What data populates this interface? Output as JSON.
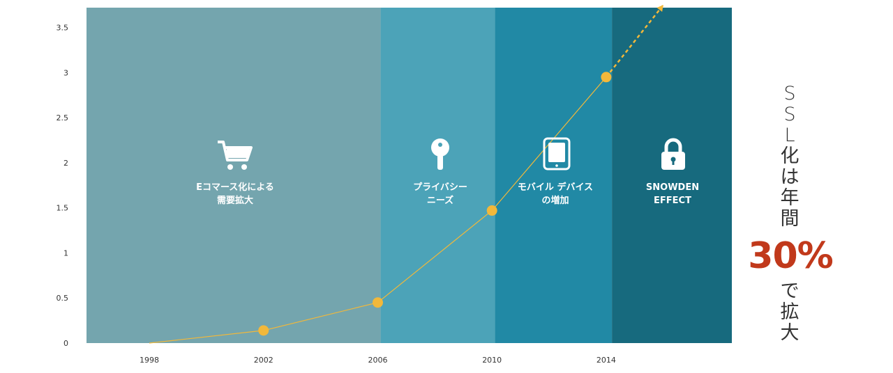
{
  "chart_data": {
    "type": "line",
    "x": [
      1998,
      2002,
      2006,
      2010,
      2014
    ],
    "y": [
      0.0,
      0.14,
      0.45,
      1.47,
      2.95
    ],
    "projection": {
      "from": [
        2014,
        2.95
      ],
      "to": [
        2016,
        3.75
      ]
    },
    "xticks": [
      "1998",
      "2002",
      "2006",
      "2010",
      "2014"
    ],
    "yticks": [
      "0",
      "0.5",
      "1",
      "1.5",
      "2",
      "2.5",
      "3",
      "3.5"
    ],
    "xlim": [
      1995.8,
      2018.4
    ],
    "ylim": [
      0,
      3.72
    ],
    "grid": false,
    "bands": [
      {
        "from": 1995.8,
        "to": 2006.1,
        "color": "#74a5ae",
        "label_lines": [
          "Eコマース化による",
          "需要拡大"
        ],
        "icon": "cart-icon"
      },
      {
        "from": 2006.1,
        "to": 2010.1,
        "color": "#4ca3b8",
        "label_lines": [
          "プライバシー",
          "ニーズ"
        ],
        "icon": "key-icon"
      },
      {
        "from": 2010.1,
        "to": 2014.2,
        "color": "#2189a5",
        "label_lines": [
          "モバイル デバイス",
          "の増加"
        ],
        "icon": "tablet-icon"
      },
      {
        "from": 2014.2,
        "to": 2018.4,
        "color": "#176a7e",
        "label_lines": [
          "SNOWDEN",
          "EFFECT"
        ],
        "icon": "lock-icon"
      }
    ],
    "line_color": "#f2b83a"
  },
  "side_caption": {
    "top_chars": [
      "S",
      "S",
      "L",
      "化",
      "は",
      "年",
      "間"
    ],
    "percent": "30%",
    "bottom_chars": [
      "で",
      "拡",
      "大"
    ]
  }
}
